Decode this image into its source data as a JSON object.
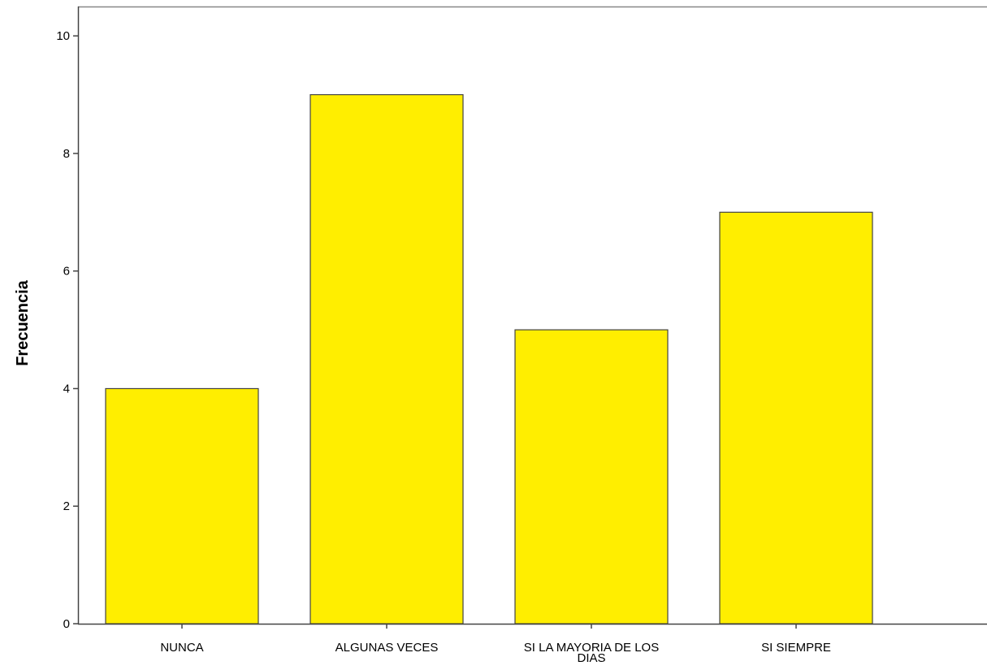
{
  "chart_data": {
    "type": "bar",
    "title": "",
    "xlabel": "",
    "ylabel": "Frecuencia",
    "categories": [
      [
        "NUNCA"
      ],
      [
        "ALGUNAS VECES"
      ],
      [
        "SI LA MAYORIA DE LOS",
        "DIAS"
      ],
      [
        "SI SIEMPRE"
      ]
    ],
    "values": [
      4,
      9,
      5,
      7
    ],
    "ylim": [
      0,
      10.5
    ],
    "yticks": [
      0,
      2,
      4,
      6,
      8,
      10
    ],
    "grid": false,
    "legend": "none",
    "colors": {
      "bar_fill": "#FFEE00",
      "bar_stroke": "#444444",
      "axis": "#444444",
      "frame": "#888888"
    }
  }
}
